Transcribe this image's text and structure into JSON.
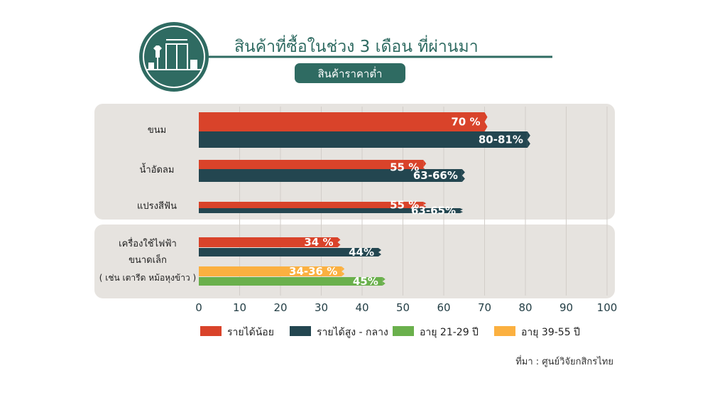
{
  "header": {
    "title": "สินค้าที่ซื้อในช่วง 3 เดือน ที่ผ่านมา",
    "badge": "สินค้าราคาต่ำ",
    "icon": "clothing-store-icon"
  },
  "colors": {
    "low_income": "#d9432a",
    "mid_high_income": "#234650",
    "age_21_29": "#6ab04c",
    "age_39_55": "#fbb040",
    "teal": "#2f6b62",
    "panel": "#e6e3df"
  },
  "chart_data": {
    "type": "bar",
    "orientation": "horizontal",
    "x_ticks": [
      "0",
      "10",
      "20",
      "30",
      "40",
      "50",
      "60",
      "70",
      "80",
      "90",
      "100"
    ],
    "xlim": [
      0,
      100
    ],
    "groups": [
      {
        "category": "ขนม",
        "bars": [
          {
            "series": "low_income",
            "value": 70,
            "label": "70 %"
          },
          {
            "series": "mid_high_income",
            "value": 80.5,
            "label": "80-81%"
          }
        ]
      },
      {
        "category": "น้ำอัดลม",
        "bars": [
          {
            "series": "low_income",
            "value": 55,
            "label": "55 %"
          },
          {
            "series": "mid_high_income",
            "value": 64.5,
            "label": "63-66%"
          }
        ]
      },
      {
        "category": "แปรงสีฟัน",
        "bars": [
          {
            "series": "low_income",
            "value": 55,
            "label": "55 %"
          },
          {
            "series": "mid_high_income",
            "value": 64,
            "label": "63-65%"
          }
        ]
      },
      {
        "category_lines": [
          "เครื่องใช้ไฟฟ้า",
          "ขนาดเล็ก",
          "( เช่น เตารีด หม้อหุงข้าว )"
        ],
        "bars": [
          {
            "series": "low_income",
            "value": 34,
            "label": "34 %"
          },
          {
            "series": "mid_high_income",
            "value": 44,
            "label": "44%"
          },
          {
            "series": "age_39_55",
            "value": 35,
            "label": "34-36 %"
          },
          {
            "series": "age_21_29",
            "value": 45,
            "label": "45%"
          }
        ]
      }
    ],
    "legend": [
      {
        "key": "low_income",
        "name": "รายได้น้อย"
      },
      {
        "key": "mid_high_income",
        "name": "รายได้สูง - กลาง"
      },
      {
        "key": "age_21_29",
        "name": "อายุ 21-29 ปี"
      },
      {
        "key": "age_39_55",
        "name": "อายุ 39-55 ปี"
      }
    ],
    "legend_position": "bottom",
    "source": "ที่มา : ศูนย์วิจัยกสิกรไทย"
  }
}
